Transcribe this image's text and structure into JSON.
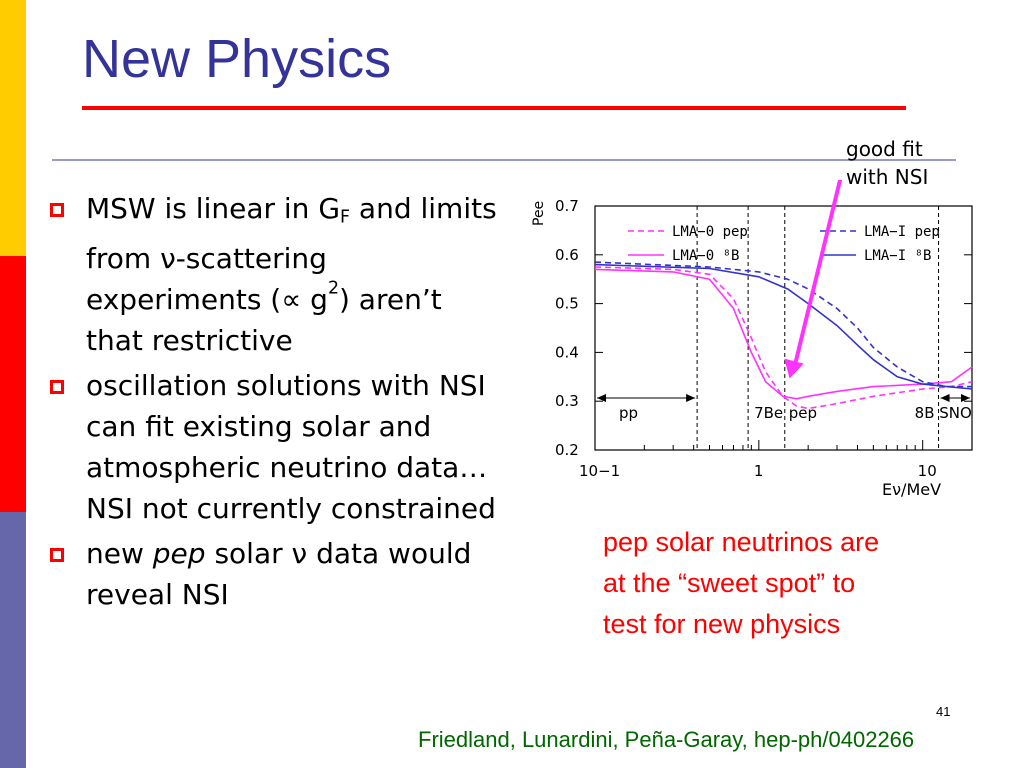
{
  "slide": {
    "title": "New Physics",
    "slide_number": "41",
    "citation": "Friedland, Lunardini, Peña-Garay, hep-ph/0402266",
    "note_lines": [
      "pep solar neutrinos are",
      "at the “sweet spot” to",
      "test for new physics"
    ],
    "callout_lines": [
      "good fit",
      "with NSI"
    ],
    "colors": {
      "title": "#333399",
      "accent": "#ff0000",
      "bullet": "#ff0000",
      "citation": "#006600",
      "note": "#ff0000",
      "callout_arrow": "#ff33ff"
    }
  },
  "bullets": [
    {
      "parts": [
        "MSW is linear in G",
        "F",
        " and limits from ",
        "ν",
        "-scattering experiments (",
        "∝",
        " g",
        "2",
        ") aren’t that restrictive"
      ]
    },
    {
      "text": "oscillation solutions with NSI can fit existing solar and atmospheric neutrino data…NSI not currently constrained"
    },
    {
      "parts": [
        "new ",
        "pep",
        " solar ",
        "ν",
        " data would reveal NSI"
      ]
    }
  ],
  "chart_data": {
    "type": "line",
    "xlabel": "Eν/MeV",
    "ylabel": "Pee",
    "xscale": "log",
    "xlim": [
      0.1,
      20
    ],
    "ylim": [
      0.2,
      0.7
    ],
    "x_ticks": [
      "10−1",
      "1",
      "10"
    ],
    "y_ticks": [
      "0.2",
      "0.3",
      "0.4",
      "0.5",
      "0.6",
      "0.7"
    ],
    "region_labels": [
      "pp",
      "7Be",
      "pep",
      "8B SNO"
    ],
    "series": [
      {
        "name": "LMA−0 pep",
        "color": "#ff33ff",
        "style": "dashed",
        "points": [
          [
            0.1,
            0.575
          ],
          [
            0.3,
            0.57
          ],
          [
            0.5,
            0.56
          ],
          [
            0.7,
            0.51
          ],
          [
            0.9,
            0.43
          ],
          [
            1.1,
            0.36
          ],
          [
            1.4,
            0.31
          ],
          [
            1.7,
            0.29
          ],
          [
            2.0,
            0.285
          ],
          [
            3,
            0.295
          ],
          [
            5,
            0.31
          ],
          [
            10,
            0.325
          ],
          [
            15,
            0.33
          ],
          [
            20,
            0.34
          ]
        ]
      },
      {
        "name": "LMA−0 ⁸B",
        "color": "#ff33ff",
        "style": "solid",
        "points": [
          [
            0.1,
            0.57
          ],
          [
            0.3,
            0.565
          ],
          [
            0.5,
            0.55
          ],
          [
            0.7,
            0.49
          ],
          [
            0.9,
            0.4
          ],
          [
            1.1,
            0.34
          ],
          [
            1.4,
            0.31
          ],
          [
            1.7,
            0.305
          ],
          [
            2.0,
            0.31
          ],
          [
            3,
            0.32
          ],
          [
            5,
            0.33
          ],
          [
            10,
            0.335
          ],
          [
            15,
            0.34
          ],
          [
            20,
            0.37
          ]
        ]
      },
      {
        "name": "LMA−I pep",
        "color": "#3333cc",
        "style": "dashed",
        "points": [
          [
            0.1,
            0.585
          ],
          [
            0.5,
            0.575
          ],
          [
            1,
            0.565
          ],
          [
            1.5,
            0.55
          ],
          [
            2,
            0.53
          ],
          [
            3,
            0.49
          ],
          [
            4,
            0.45
          ],
          [
            5,
            0.41
          ],
          [
            7,
            0.37
          ],
          [
            10,
            0.34
          ],
          [
            14,
            0.33
          ],
          [
            20,
            0.33
          ]
        ]
      },
      {
        "name": "LMA−I ⁸B",
        "color": "#3333cc",
        "style": "solid",
        "points": [
          [
            0.1,
            0.58
          ],
          [
            0.5,
            0.572
          ],
          [
            1,
            0.555
          ],
          [
            1.5,
            0.53
          ],
          [
            2,
            0.5
          ],
          [
            3,
            0.455
          ],
          [
            4,
            0.415
          ],
          [
            5,
            0.385
          ],
          [
            7,
            0.35
          ],
          [
            10,
            0.335
          ],
          [
            14,
            0.33
          ],
          [
            20,
            0.325
          ]
        ]
      }
    ],
    "vertical_lines": [
      0.42,
      0.86,
      1.44,
      12.5
    ],
    "arrow_target": {
      "x": 1.7,
      "y": 0.33
    },
    "legend": "top"
  }
}
